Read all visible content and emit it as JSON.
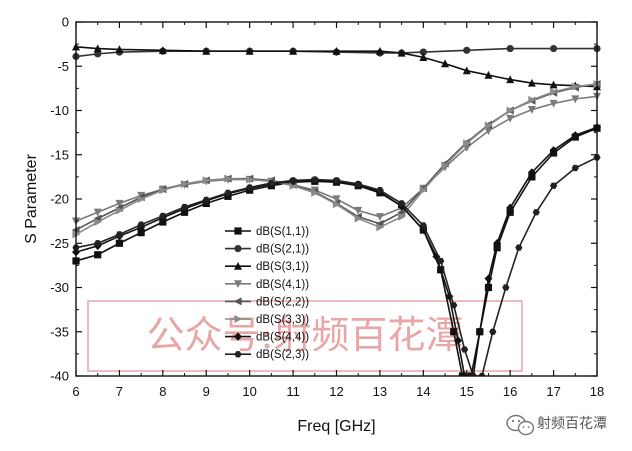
{
  "chart_data": {
    "type": "line",
    "xlabel": "Freq [GHz]",
    "ylabel": "S Parameter",
    "xlim": [
      6,
      18
    ],
    "ylim": [
      -40,
      0
    ],
    "x_ticks": [
      6,
      7,
      8,
      9,
      10,
      11,
      12,
      13,
      14,
      15,
      16,
      17,
      18
    ],
    "y_ticks": [
      0,
      -5,
      -10,
      -15,
      -20,
      -25,
      -30,
      -35,
      -40
    ],
    "grid": false,
    "legend_position": "center-left",
    "series": [
      {
        "name": "dB(S(1,1))",
        "marker": "square",
        "color": "#111111",
        "points": [
          [
            6,
            -27.0
          ],
          [
            6.5,
            -26.3
          ],
          [
            7,
            -25.0
          ],
          [
            7.5,
            -23.8
          ],
          [
            8,
            -22.6
          ],
          [
            8.5,
            -21.5
          ],
          [
            9,
            -20.5
          ],
          [
            9.5,
            -19.7
          ],
          [
            10,
            -19.0
          ],
          [
            10.5,
            -18.5
          ],
          [
            11,
            -18.1
          ],
          [
            11.5,
            -18.0
          ],
          [
            12,
            -18.1
          ],
          [
            12.5,
            -18.5
          ],
          [
            13,
            -19.3
          ],
          [
            13.5,
            -20.8
          ],
          [
            14,
            -23.5
          ],
          [
            14.4,
            -28.0
          ],
          [
            14.7,
            -35.0
          ],
          [
            14.9,
            -40.0
          ],
          [
            15.1,
            -40.0
          ],
          [
            15.3,
            -35.0
          ],
          [
            15.5,
            -30.0
          ],
          [
            15.7,
            -25.5
          ],
          [
            16,
            -21.5
          ],
          [
            16.5,
            -17.5
          ],
          [
            17,
            -14.8
          ],
          [
            17.5,
            -13.0
          ],
          [
            18,
            -12.0
          ]
        ]
      },
      {
        "name": "dB(S(2,1))",
        "marker": "circle",
        "color": "#333333",
        "points": [
          [
            6,
            -3.9
          ],
          [
            6.5,
            -3.6
          ],
          [
            7,
            -3.4
          ],
          [
            8,
            -3.3
          ],
          [
            9,
            -3.3
          ],
          [
            10,
            -3.3
          ],
          [
            11,
            -3.3
          ],
          [
            12,
            -3.4
          ],
          [
            13,
            -3.5
          ],
          [
            13.5,
            -3.5
          ],
          [
            14,
            -3.4
          ],
          [
            15,
            -3.2
          ],
          [
            16,
            -3.0
          ],
          [
            17,
            -3.0
          ],
          [
            18,
            -3.0
          ]
        ]
      },
      {
        "name": "dB(S(3,1))",
        "marker": "triangle-up",
        "color": "#111111",
        "points": [
          [
            6,
            -2.8
          ],
          [
            6.5,
            -3.0
          ],
          [
            7,
            -3.1
          ],
          [
            8,
            -3.2
          ],
          [
            9,
            -3.3
          ],
          [
            10,
            -3.3
          ],
          [
            11,
            -3.3
          ],
          [
            12,
            -3.3
          ],
          [
            13,
            -3.3
          ],
          [
            13.5,
            -3.5
          ],
          [
            14,
            -4.0
          ],
          [
            14.5,
            -4.7
          ],
          [
            15,
            -5.5
          ],
          [
            15.5,
            -6.0
          ],
          [
            16,
            -6.5
          ],
          [
            16.5,
            -6.9
          ],
          [
            17,
            -7.1
          ],
          [
            17.5,
            -7.2
          ],
          [
            18,
            -7.3
          ]
        ]
      },
      {
        "name": "dB(S(4,1))",
        "marker": "triangle-down",
        "color": "#7a7a7a",
        "points": [
          [
            6,
            -22.5
          ],
          [
            6.5,
            -21.5
          ],
          [
            7,
            -20.5
          ],
          [
            7.5,
            -19.6
          ],
          [
            8,
            -18.9
          ],
          [
            8.5,
            -18.4
          ],
          [
            9,
            -18.0
          ],
          [
            9.5,
            -17.8
          ],
          [
            10,
            -17.8
          ],
          [
            10.5,
            -18.0
          ],
          [
            11,
            -18.4
          ],
          [
            11.5,
            -19.0
          ],
          [
            12,
            -20.0
          ],
          [
            12.5,
            -21.3
          ],
          [
            13,
            -22.0
          ],
          [
            13.5,
            -21.0
          ],
          [
            14,
            -18.8
          ],
          [
            14.5,
            -16.4
          ],
          [
            15,
            -14.2
          ],
          [
            15.5,
            -12.3
          ],
          [
            16,
            -10.9
          ],
          [
            16.5,
            -9.9
          ],
          [
            17,
            -9.2
          ],
          [
            17.5,
            -8.7
          ],
          [
            18,
            -8.4
          ]
        ]
      },
      {
        "name": "dB(S(2,2))",
        "marker": "triangle-left",
        "color": "#555555",
        "points": [
          [
            6,
            -23.5
          ],
          [
            6.5,
            -22.2
          ],
          [
            7,
            -21.0
          ],
          [
            7.5,
            -19.8
          ],
          [
            8,
            -18.9
          ],
          [
            8.5,
            -18.3
          ],
          [
            9,
            -17.9
          ],
          [
            9.5,
            -17.7
          ],
          [
            10,
            -17.7
          ],
          [
            10.5,
            -17.9
          ],
          [
            11,
            -18.4
          ],
          [
            11.5,
            -19.2
          ],
          [
            12,
            -20.5
          ],
          [
            12.5,
            -22.0
          ],
          [
            13,
            -22.8
          ],
          [
            13.5,
            -21.5
          ],
          [
            14,
            -18.8
          ],
          [
            14.5,
            -16.0
          ],
          [
            15,
            -13.6
          ],
          [
            15.5,
            -11.6
          ],
          [
            16,
            -10.0
          ],
          [
            16.5,
            -8.9
          ],
          [
            17,
            -8.0
          ],
          [
            17.5,
            -7.4
          ],
          [
            18,
            -7.0
          ]
        ]
      },
      {
        "name": "dB(S(3,3))",
        "marker": "triangle-right",
        "color": "#8a8a8a",
        "points": [
          [
            6,
            -24.0
          ],
          [
            6.5,
            -22.6
          ],
          [
            7,
            -21.3
          ],
          [
            7.5,
            -20.0
          ],
          [
            8,
            -19.0
          ],
          [
            8.5,
            -18.3
          ],
          [
            9,
            -17.9
          ],
          [
            9.5,
            -17.7
          ],
          [
            10,
            -17.8
          ],
          [
            10.5,
            -18.0
          ],
          [
            11,
            -18.5
          ],
          [
            11.5,
            -19.3
          ],
          [
            12,
            -20.6
          ],
          [
            12.5,
            -22.2
          ],
          [
            13,
            -23.2
          ],
          [
            13.5,
            -22.0
          ],
          [
            14,
            -19.0
          ],
          [
            14.5,
            -16.2
          ],
          [
            15,
            -13.7
          ],
          [
            15.5,
            -11.7
          ],
          [
            16,
            -10.0
          ],
          [
            16.5,
            -8.8
          ],
          [
            17,
            -7.9
          ],
          [
            17.5,
            -7.3
          ],
          [
            18,
            -7.0
          ]
        ]
      },
      {
        "name": "dB(S(4,4))",
        "marker": "diamond",
        "color": "#111111",
        "points": [
          [
            6,
            -26.0
          ],
          [
            6.5,
            -25.3
          ],
          [
            7,
            -24.2
          ],
          [
            7.5,
            -23.2
          ],
          [
            8,
            -22.1
          ],
          [
            8.5,
            -21.1
          ],
          [
            9,
            -20.2
          ],
          [
            9.5,
            -19.4
          ],
          [
            10,
            -18.8
          ],
          [
            10.5,
            -18.3
          ],
          [
            11,
            -18.0
          ],
          [
            11.5,
            -17.9
          ],
          [
            12,
            -18.0
          ],
          [
            12.5,
            -18.4
          ],
          [
            13,
            -19.2
          ],
          [
            13.5,
            -20.8
          ],
          [
            14,
            -23.5
          ],
          [
            14.3,
            -26.5
          ],
          [
            14.6,
            -31.0
          ],
          [
            14.8,
            -36.0
          ],
          [
            14.95,
            -40.0
          ],
          [
            15.15,
            -40.0
          ],
          [
            15.3,
            -35.0
          ],
          [
            15.5,
            -29.0
          ],
          [
            15.7,
            -25.0
          ],
          [
            16,
            -21.0
          ],
          [
            16.5,
            -17.0
          ],
          [
            17,
            -14.5
          ],
          [
            17.5,
            -12.8
          ],
          [
            18,
            -11.9
          ]
        ]
      },
      {
        "name": "dB(S(2,3))",
        "marker": "hexagon",
        "color": "#222222",
        "points": [
          [
            6,
            -25.5
          ],
          [
            6.5,
            -25.0
          ],
          [
            7,
            -24.0
          ],
          [
            7.5,
            -22.9
          ],
          [
            8,
            -21.9
          ],
          [
            8.5,
            -20.9
          ],
          [
            9,
            -20.1
          ],
          [
            9.5,
            -19.3
          ],
          [
            10,
            -18.7
          ],
          [
            10.5,
            -18.2
          ],
          [
            11,
            -17.9
          ],
          [
            11.5,
            -17.8
          ],
          [
            12,
            -17.9
          ],
          [
            12.5,
            -18.3
          ],
          [
            13,
            -19.0
          ],
          [
            13.5,
            -20.5
          ],
          [
            14,
            -23.0
          ],
          [
            14.4,
            -27.0
          ],
          [
            14.7,
            -32.0
          ],
          [
            14.95,
            -37.0
          ],
          [
            15.15,
            -40.0
          ],
          [
            15.35,
            -40.0
          ],
          [
            15.6,
            -35.0
          ],
          [
            15.9,
            -30.0
          ],
          [
            16.2,
            -25.5
          ],
          [
            16.6,
            -21.5
          ],
          [
            17,
            -18.5
          ],
          [
            17.5,
            -16.5
          ],
          [
            18,
            -15.3
          ]
        ]
      }
    ]
  },
  "watermark": {
    "text": "公众号:射频百花潭",
    "color": "#e8a6a6"
  },
  "badge": {
    "icon": "wechat-icon",
    "text": "射频百花潭"
  }
}
